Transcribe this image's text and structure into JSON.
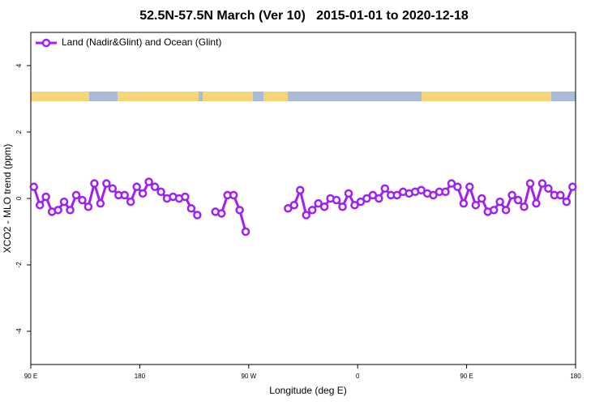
{
  "chart_data": {
    "type": "line",
    "title": "52.5N-57.5N March (Ver 10)   2015-01-01 to 2020-12-18",
    "xlabel": "Longitude (deg E)",
    "ylabel": "XCO2 - MLO trend (ppm)",
    "xlim": [
      90,
      540
    ],
    "ylim": [
      -5,
      5
    ],
    "xticks": [
      {
        "value": 90,
        "label": "90 E"
      },
      {
        "value": 180,
        "label": "180"
      },
      {
        "value": 270,
        "label": "90 W"
      },
      {
        "value": 360,
        "label": "0"
      },
      {
        "value": 450,
        "label": "90 E"
      },
      {
        "value": 540,
        "label": "180"
      }
    ],
    "yticks": [
      -4,
      -2,
      0,
      2,
      4
    ],
    "grid": false,
    "legend": "top-left",
    "x": [
      92.5,
      97.5,
      102.5,
      107.5,
      112.5,
      117.5,
      122.5,
      127.5,
      132.5,
      137.5,
      142.5,
      147.5,
      152.5,
      157.5,
      162.5,
      167.5,
      172.5,
      177.5,
      182.5,
      187.5,
      192.5,
      197.5,
      202.5,
      207.5,
      212.5,
      217.5,
      222.5,
      227.5,
      232.5,
      237.5,
      242.5,
      247.5,
      252.5,
      257.5,
      262.5,
      267.5,
      272.5,
      277.5,
      282.5,
      287.5,
      292.5,
      297.5,
      302.5,
      307.5,
      312.5,
      317.5,
      322.5,
      327.5,
      332.5,
      337.5,
      342.5,
      347.5,
      352.5,
      357.5,
      362.5,
      367.5,
      372.5,
      377.5,
      382.5,
      387.5,
      392.5,
      397.5,
      402.5,
      407.5,
      412.5,
      417.5,
      422.5,
      427.5,
      432.5,
      437.5,
      442.5,
      447.5,
      452.5,
      457.5,
      462.5,
      467.5,
      472.5,
      477.5,
      482.5,
      487.5,
      492.5,
      497.5,
      502.5,
      507.5,
      512.5,
      517.5,
      522.5,
      527.5,
      532.5,
      537.5
    ],
    "series": [
      {
        "name": "Land (Nadir&Glint) and Ocean (Glint)",
        "color": "#a020f0",
        "values": [
          0.35,
          -0.2,
          0.05,
          -0.4,
          -0.35,
          -0.1,
          -0.35,
          0.1,
          -0.05,
          -0.25,
          0.45,
          -0.15,
          0.45,
          0.3,
          0.1,
          0.1,
          -0.1,
          0.35,
          0.15,
          0.5,
          0.35,
          0.2,
          0.0,
          0.05,
          0.0,
          0.05,
          -0.3,
          -0.5,
          null,
          null,
          -0.4,
          -0.45,
          0.1,
          0.1,
          -0.35,
          -1.0,
          null,
          null,
          null,
          null,
          null,
          null,
          -0.3,
          -0.2,
          0.25,
          -0.5,
          -0.35,
          -0.15,
          -0.25,
          0.0,
          -0.05,
          -0.25,
          0.15,
          -0.2,
          -0.1,
          0.0,
          0.1,
          0.0,
          0.3,
          0.1,
          0.1,
          0.2,
          0.15,
          0.2,
          0.25,
          0.15,
          0.1,
          0.2,
          0.2,
          0.45,
          0.35,
          -0.15,
          0.35,
          -0.2,
          0.0,
          -0.4,
          -0.35,
          -0.1,
          -0.35,
          0.1,
          -0.05,
          -0.25,
          0.45,
          -0.15,
          0.45,
          0.3,
          0.1,
          0.1,
          -0.1,
          0.35
        ]
      }
    ]
  }
}
